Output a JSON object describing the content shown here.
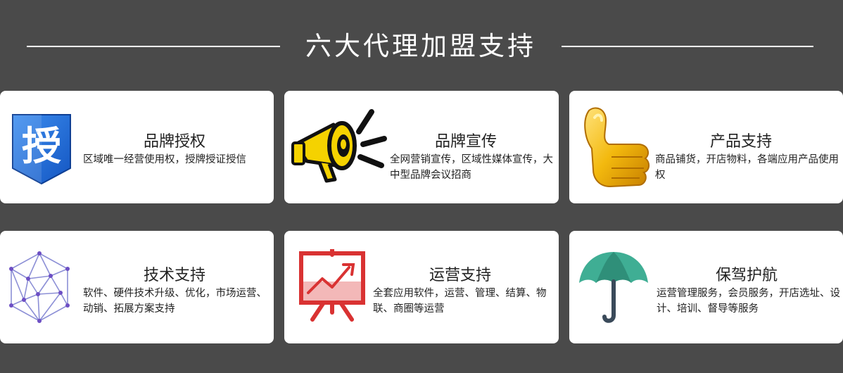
{
  "heading": {
    "title": "六大代理加盟支持"
  },
  "cards": [
    {
      "title": "品牌授权",
      "desc": "区域唯一经营使用权，授牌授证授信",
      "icon": "authorize-badge-icon",
      "badge_text": "授"
    },
    {
      "title": "品牌宣传",
      "desc": "全网营销宣传，区域性媒体宣传，大中型品牌会议招商",
      "icon": "megaphone-icon"
    },
    {
      "title": "产品支持",
      "desc": "商品铺货，开店物料，各端应用产品使用权",
      "icon": "thumbs-up-icon"
    },
    {
      "title": "技术支持",
      "desc": "软件、硬件技术升级、优化，市场运营、动销、拓展方案支持",
      "icon": "network-polygon-icon"
    },
    {
      "title": "运营支持",
      "desc": "全套应用软件，运营、管理、结算、物联、商圈等运营",
      "icon": "presentation-chart-icon"
    },
    {
      "title": "保驾护航",
      "desc": "运营管理服务，会员服务，开店选址、设计、培训、督导等服务",
      "icon": "umbrella-icon"
    }
  ],
  "colors": {
    "background": "#4a4a4a",
    "card": "#ffffff",
    "badge_blue": "#1e6fd8",
    "megaphone_yellow": "#f5d200",
    "thumb_gold": "#f3b90e",
    "chart_red": "#e03a3a",
    "umbrella_teal": "#3fae94"
  }
}
